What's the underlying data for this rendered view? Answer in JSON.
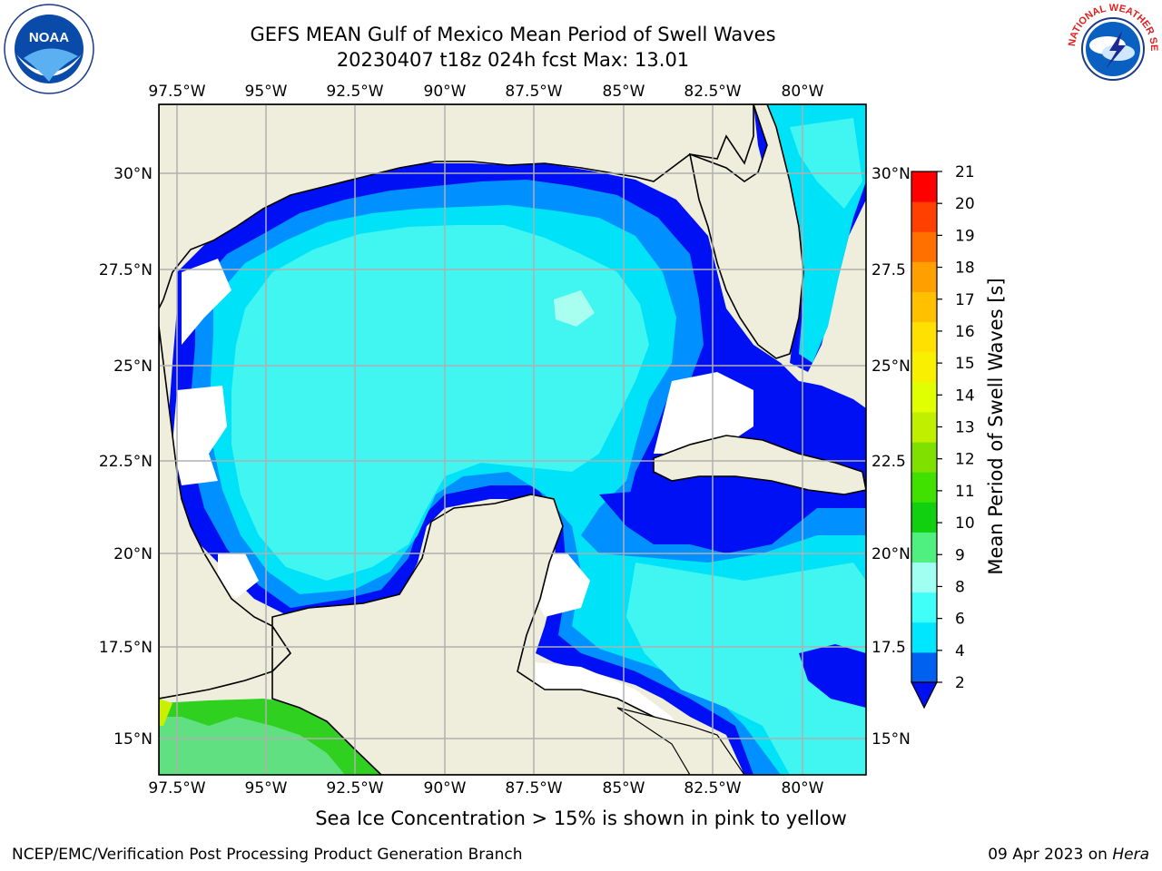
{
  "header": {
    "title_line1": "GEFS MEAN Gulf of Mexico Mean Period of Swell Waves",
    "title_line2": "20230407 t18z 024h fcst   Max: 13.01"
  },
  "logos": {
    "left": "NOAA",
    "right": "NATIONAL WEATHER SERVICE"
  },
  "map": {
    "lon_labels": [
      "97.5°W",
      "95°W",
      "92.5°W",
      "90°W",
      "87.5°W",
      "85°W",
      "82.5°W",
      "80°W"
    ],
    "lat_labels_left": [
      "30°N",
      "27.5°N",
      "25°N",
      "22.5°N",
      "20°N",
      "17.5°N",
      "15°N"
    ],
    "lat_labels_right": [
      "30°N",
      "27.5",
      "25°N",
      "22.5",
      "20°N",
      "17.5",
      "15°N"
    ],
    "colors": {
      "land": "#efeedd",
      "sea_light": "#41f5f0",
      "sea_mid": "#00e2f8",
      "sea_blue": "#0090ff",
      "sea_dark": "#0010f4",
      "grid": "#b0b0b0",
      "green": "#30d020"
    }
  },
  "colorbar": {
    "label": "Mean Period of Swell Waves [s]",
    "ticks": [
      "21",
      "20",
      "19",
      "18",
      "17",
      "16",
      "15",
      "14",
      "13",
      "12",
      "11",
      "10",
      "9",
      "8",
      "6",
      "4",
      "2"
    ],
    "colors": [
      "#0060f0",
      "#00e6ff",
      "#40fff8",
      "#a0fff0",
      "#50f080",
      "#10d010",
      "#40e000",
      "#80e000",
      "#c0f000",
      "#e0ff00",
      "#f8f000",
      "#ffe000",
      "#ffc000",
      "#ffa000",
      "#ff7000",
      "#ff4000",
      "#ff0000"
    ],
    "extend_color": "#0010f0"
  },
  "footer": {
    "note": "Sea Ice Concentration > 15% is shown in pink to yellow",
    "credit_left": "NCEP/EMC/Verification Post Processing Product Generation Branch",
    "credit_date": "09 Apr 2023 on ",
    "credit_host": "Hera"
  }
}
